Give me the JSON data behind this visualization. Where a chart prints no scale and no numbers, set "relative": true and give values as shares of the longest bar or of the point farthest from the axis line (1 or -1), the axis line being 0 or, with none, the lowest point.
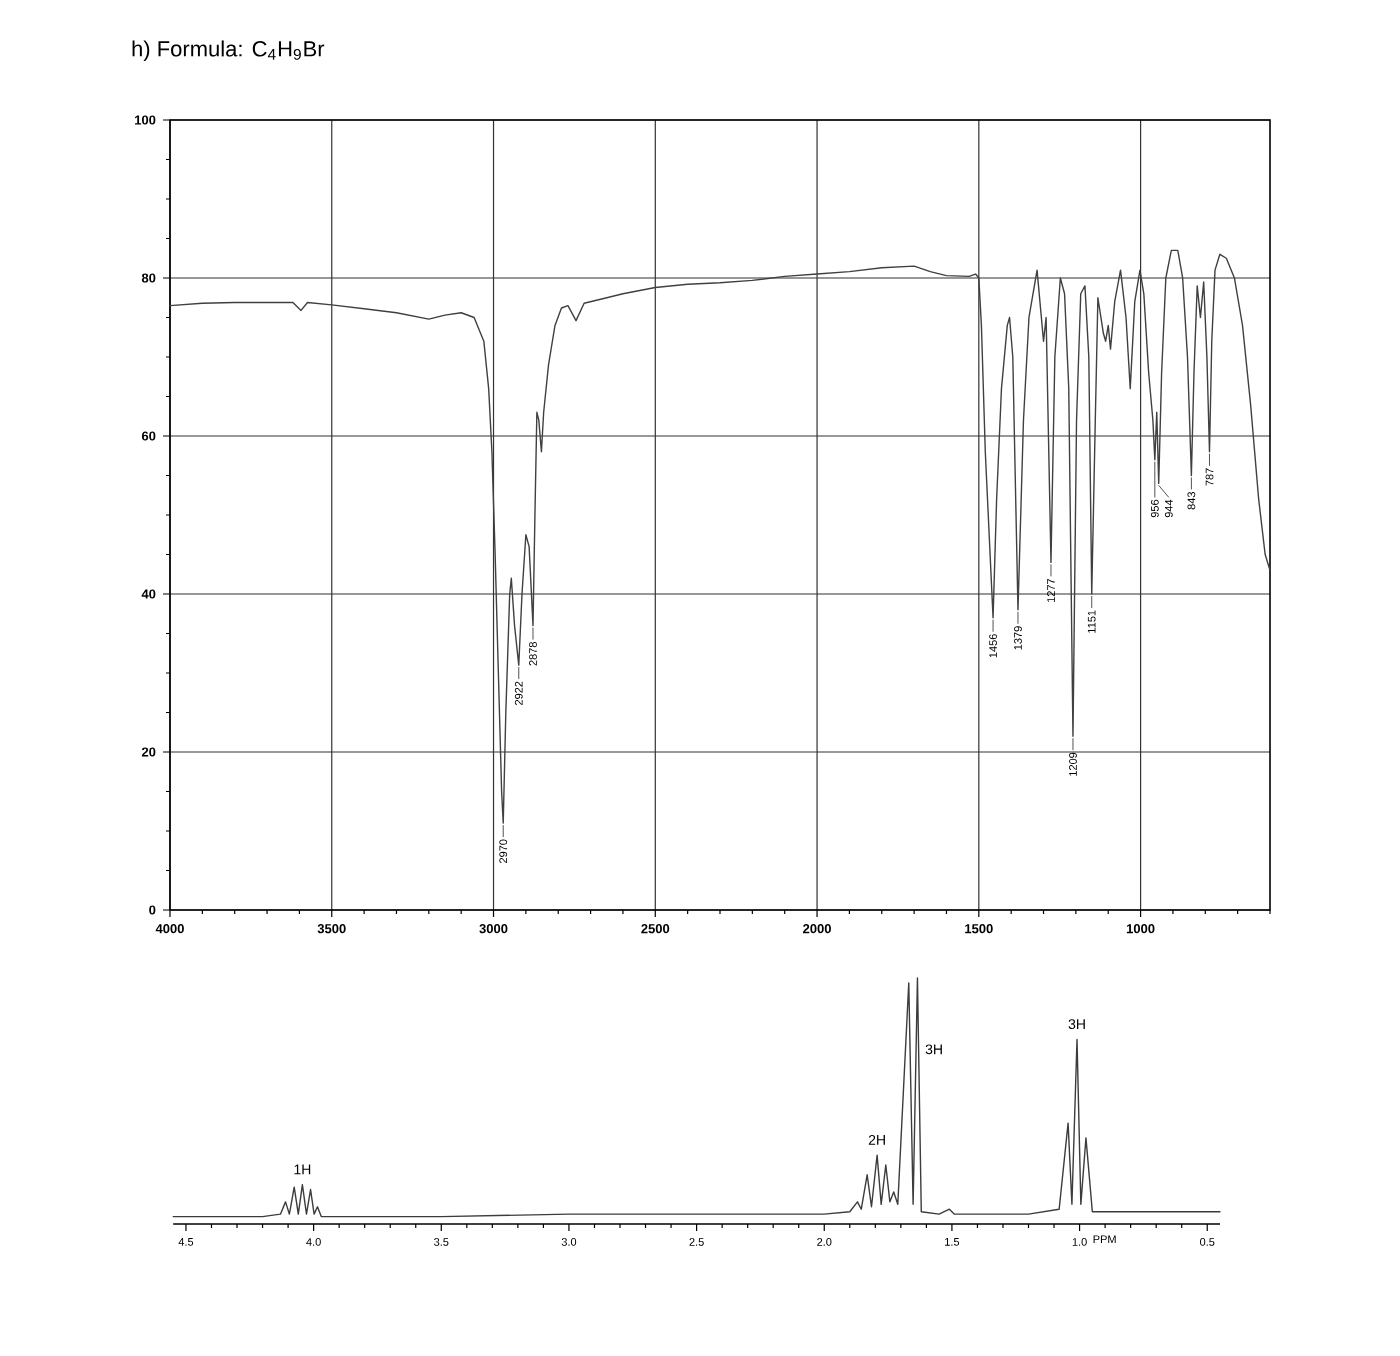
{
  "chart_data": [
    {
      "type": "line",
      "title": "h) Formula: C$_{4}$H$_{9}$Br",
      "x": [
        4000,
        3900,
        3800,
        3620,
        3595,
        3575,
        3500,
        3400,
        3300,
        3250,
        3200,
        3150,
        3100,
        3060,
        3030,
        3015,
        3005,
        2995,
        2985,
        2975,
        2970,
        2962,
        2950,
        2945,
        2935,
        2922,
        2912,
        2900,
        2890,
        2878,
        2872,
        2866,
        2860,
        2852,
        2845,
        2830,
        2810,
        2790,
        2770,
        2745,
        2720,
        2650,
        2600,
        2500,
        2400,
        2300,
        2200,
        2100,
        2000,
        1900,
        1800,
        1700,
        1650,
        1600,
        1530,
        1510,
        1500,
        1492,
        1480,
        1456,
        1445,
        1430,
        1412,
        1405,
        1395,
        1379,
        1362,
        1345,
        1320,
        1300,
        1292,
        1277,
        1265,
        1248,
        1235,
        1222,
        1209,
        1198,
        1185,
        1172,
        1160,
        1151,
        1140,
        1132,
        1115,
        1108,
        1100,
        1093,
        1080,
        1062,
        1045,
        1032,
        1018,
        1002,
        990,
        975,
        962,
        956,
        950,
        944,
        935,
        922,
        905,
        885,
        870,
        855,
        843,
        835,
        825,
        815,
        805,
        795,
        787,
        780,
        770,
        755,
        735,
        710,
        685,
        660,
        635,
        615,
        600
      ],
      "values": [
        76.5,
        76.8,
        76.9,
        76.9,
        75.9,
        76.9,
        76.6,
        76.1,
        75.6,
        75.2,
        74.8,
        75.3,
        75.6,
        75,
        72,
        66,
        58,
        45,
        30,
        15,
        11,
        25,
        40,
        42,
        36,
        31,
        40,
        47.5,
        46,
        36,
        50,
        63,
        62,
        58,
        63,
        69,
        74,
        76.2,
        76.5,
        74.6,
        76.8,
        77.5,
        78,
        78.8,
        79.2,
        79.4,
        79.7,
        80.2,
        80.5,
        80.8,
        81.3,
        81.5,
        80.8,
        80.3,
        80.2,
        80.5,
        80,
        74,
        58,
        37,
        52,
        66,
        74,
        75,
        70,
        38,
        62,
        75,
        81,
        72,
        75,
        44,
        70,
        80,
        78,
        66,
        22,
        62,
        78,
        79,
        70,
        40,
        62,
        77.5,
        73,
        72,
        74,
        71,
        77,
        81,
        75,
        66,
        77,
        81,
        78,
        68,
        62,
        57,
        63,
        54,
        68,
        80,
        83.5,
        83.5,
        80,
        70,
        55,
        68,
        79,
        75,
        79.5,
        70,
        58,
        72,
        81,
        83,
        82.5,
        80,
        74,
        64,
        52,
        45,
        43
      ],
      "color": "#404040",
      "xlim": [
        4000,
        600
      ],
      "ylim": [
        0,
        100
      ],
      "xticks": [
        4000,
        {
          "value": 3900,
          "label": null
        },
        {
          "value": 3800,
          "label": null
        },
        {
          "value": 3700,
          "label": null
        },
        {
          "value": 3600,
          "label": null
        },
        3500,
        {
          "value": 3400,
          "label": null
        },
        {
          "value": 3300,
          "label": null
        },
        {
          "value": 3200,
          "label": null
        },
        {
          "value": 3100,
          "label": null
        },
        3000,
        {
          "value": 2900,
          "label": null
        },
        {
          "value": 2800,
          "label": null
        },
        {
          "value": 2700,
          "label": null
        },
        {
          "value": 2600,
          "label": null
        },
        2500,
        {
          "value": 2400,
          "label": null
        },
        {
          "value": 2300,
          "label": null
        },
        {
          "value": 2200,
          "label": null
        },
        {
          "value": 2100,
          "label": null
        },
        2000,
        {
          "value": 1900,
          "label": null
        },
        {
          "value": 1800,
          "label": null
        },
        {
          "value": 1700,
          "label": null
        },
        {
          "value": 1600,
          "label": null
        },
        1500,
        {
          "value": 1400,
          "label": null
        },
        {
          "value": 1300,
          "label": null
        },
        {
          "value": 1200,
          "label": null
        },
        {
          "value": 1100,
          "label": null
        },
        1000,
        {
          "value": 900,
          "label": null
        },
        {
          "value": 800,
          "label": null
        },
        {
          "value": 700,
          "label": null
        },
        {
          "value": 600,
          "label": null
        }
      ],
      "yticks": [
        0,
        {
          "value": 5,
          "label": null
        },
        {
          "value": 10,
          "label": null
        },
        {
          "value": 15,
          "label": null
        },
        20,
        {
          "value": 25,
          "label": null
        },
        {
          "value": 30,
          "label": null
        },
        {
          "value": 35,
          "label": null
        },
        40,
        {
          "value": 45,
          "label": null
        },
        {
          "value": 50,
          "label": null
        },
        {
          "value": 55,
          "label": null
        },
        60,
        {
          "value": 65,
          "label": null
        },
        {
          "value": 70,
          "label": null
        },
        {
          "value": 75,
          "label": null
        },
        80,
        {
          "value": 85,
          "label": null
        },
        {
          "value": 90,
          "label": null
        },
        {
          "value": 95,
          "label": null
        },
        100
      ],
      "grid": true,
      "annotations": [
        {
          "text": "2970",
          "x": 2970,
          "y": 11
        },
        {
          "text": "2922",
          "x": 2922,
          "y": 31
        },
        {
          "text": "2878",
          "x": 2878,
          "y": 36
        },
        {
          "text": "1456",
          "x": 1456,
          "y": 37
        },
        {
          "text": "1379",
          "x": 1379,
          "y": 38
        },
        {
          "text": "1277",
          "x": 1277,
          "y": 44
        },
        {
          "text": "1209",
          "x": 1209,
          "y": 22
        },
        {
          "text": "1151",
          "x": 1151,
          "y": 40
        },
        {
          "text": "956",
          "x": 956,
          "y": 57
        },
        {
          "text": "944",
          "x": 944,
          "y": 54
        },
        {
          "text": "843",
          "x": 843,
          "y": 55
        },
        {
          "text": "787",
          "x": 787,
          "y": 58
        }
      ]
    },
    {
      "type": "line",
      "x": [
        4.55,
        4.2,
        4.13,
        4.11,
        4.095,
        4.076,
        4.06,
        4.044,
        4.028,
        4.012,
        3.998,
        3.985,
        3.97,
        3.5,
        3.0,
        2.5,
        2.0,
        1.9,
        1.87,
        1.855,
        1.832,
        1.815,
        1.793,
        1.777,
        1.759,
        1.743,
        1.728,
        1.712,
        1.669,
        1.652,
        1.635,
        1.62,
        1.55,
        1.51,
        1.49,
        1.2,
        1.08,
        1.045,
        1.03,
        1.01,
        0.995,
        0.975,
        0.95,
        0.45
      ],
      "values": [
        0.03,
        0.03,
        0.04,
        0.09,
        0.04,
        0.15,
        0.04,
        0.16,
        0.04,
        0.14,
        0.04,
        0.07,
        0.03,
        0.03,
        0.04,
        0.04,
        0.04,
        0.05,
        0.09,
        0.06,
        0.2,
        0.07,
        0.28,
        0.08,
        0.24,
        0.09,
        0.13,
        0.08,
        0.98,
        0.08,
        1,
        0.05,
        0.04,
        0.06,
        0.04,
        0.04,
        0.06,
        0.41,
        0.08,
        0.75,
        0.08,
        0.35,
        0.05,
        0.05
      ],
      "color": "#3c3c3c",
      "relative": true,
      "xlim": [
        4.55,
        0.45
      ],
      "xlabel": "PPM",
      "tick_labels": "x",
      "xticks": [
        4.5,
        {
          "value": 4.4,
          "label": null
        },
        {
          "value": 4.3,
          "label": null
        },
        {
          "value": 4.2,
          "label": null
        },
        {
          "value": 4.1,
          "label": null
        },
        {
          "value": 4,
          "label": "4.0"
        },
        {
          "value": 3.9,
          "label": null
        },
        {
          "value": 3.8,
          "label": null
        },
        {
          "value": 3.7,
          "label": null
        },
        {
          "value": 3.6,
          "label": null
        },
        3.5,
        {
          "value": 3.4,
          "label": null
        },
        {
          "value": 3.3,
          "label": null
        },
        {
          "value": 3.2,
          "label": null
        },
        {
          "value": 3.1,
          "label": null
        },
        {
          "value": 3,
          "label": "3.0"
        },
        {
          "value": 2.9,
          "label": null
        },
        {
          "value": 2.8,
          "label": null
        },
        {
          "value": 2.7,
          "label": null
        },
        {
          "value": 2.6,
          "label": null
        },
        2.5,
        {
          "value": 2.4,
          "label": null
        },
        {
          "value": 2.3,
          "label": null
        },
        {
          "value": 2.2,
          "label": null
        },
        {
          "value": 2.1,
          "label": null
        },
        {
          "value": 2,
          "label": "2.0"
        },
        {
          "value": 1.9,
          "label": null
        },
        {
          "value": 1.8,
          "label": null
        },
        {
          "value": 1.7,
          "label": null
        },
        {
          "value": 1.6,
          "label": null
        },
        1.5,
        {
          "value": 1.4,
          "label": null
        },
        {
          "value": 1.3,
          "label": null
        },
        {
          "value": 1.2,
          "label": null
        },
        {
          "value": 1.1,
          "label": null
        },
        {
          "value": 1,
          "label": "1.0"
        },
        {
          "value": 0.9,
          "label": null
        },
        {
          "value": 0.8,
          "label": null
        },
        {
          "value": 0.7,
          "label": null
        },
        {
          "value": 0.6,
          "label": null
        },
        0.5
      ],
      "annotations": [
        {
          "text": "1H",
          "x": 4.044,
          "y": 0.16
        },
        {
          "text": "2H",
          "x": 1.793,
          "y": 0.28
        },
        {
          "text": "3H",
          "x": 1.63,
          "y": 0.71
        },
        {
          "text": "3H",
          "x": 1.01,
          "y": 0.75
        }
      ]
    }
  ]
}
